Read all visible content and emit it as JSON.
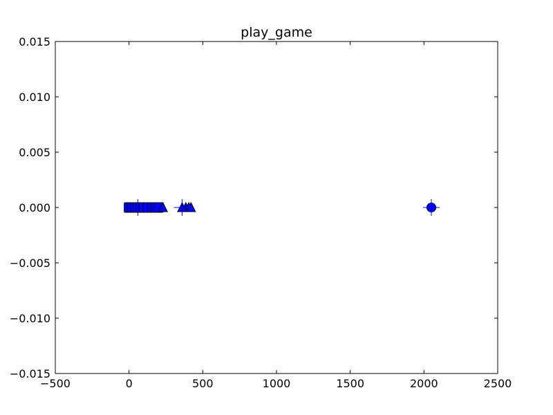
{
  "chart_data": {
    "type": "scatter",
    "title": "play_game",
    "xlabel": "",
    "ylabel": "",
    "xlim": [
      -500,
      2500
    ],
    "ylim": [
      -0.015,
      0.015
    ],
    "xticks": [
      -500,
      0,
      500,
      1000,
      1500,
      2000,
      2500
    ],
    "yticks": [
      -0.015,
      -0.01,
      -0.005,
      0.0,
      0.005,
      0.01,
      0.015
    ],
    "xtick_labels": [
      "−500",
      "0",
      "500",
      "1000",
      "1500",
      "2000",
      "2500"
    ],
    "ytick_labels": [
      "−0.015",
      "−0.010",
      "−0.005",
      "0.000",
      "0.005",
      "0.010",
      "0.015"
    ],
    "grid": false,
    "marker_color": "#0000ff",
    "series": [
      {
        "marker": "square",
        "points": [
          {
            "x": 0,
            "y": 0
          },
          {
            "x": 20,
            "y": 0
          },
          {
            "x": 40,
            "y": 0
          },
          {
            "x": 60,
            "y": 0
          },
          {
            "x": 80,
            "y": 0
          },
          {
            "x": 100,
            "y": 0
          },
          {
            "x": 130,
            "y": 0
          },
          {
            "x": 160,
            "y": 0
          },
          {
            "x": 180,
            "y": 0
          },
          {
            "x": 200,
            "y": 0
          }
        ]
      },
      {
        "marker": "triangle",
        "points": [
          {
            "x": 230,
            "y": 0
          },
          {
            "x": 360,
            "y": 0
          },
          {
            "x": 385,
            "y": 0
          },
          {
            "x": 405,
            "y": 0
          },
          {
            "x": 420,
            "y": 0
          }
        ]
      },
      {
        "marker": "circle",
        "points": [
          {
            "x": 2050,
            "y": 0
          }
        ]
      },
      {
        "marker": "plus",
        "points": [
          {
            "x": 60,
            "y": 0
          },
          {
            "x": 360,
            "y": 0
          },
          {
            "x": 2050,
            "y": 0
          }
        ]
      }
    ]
  }
}
